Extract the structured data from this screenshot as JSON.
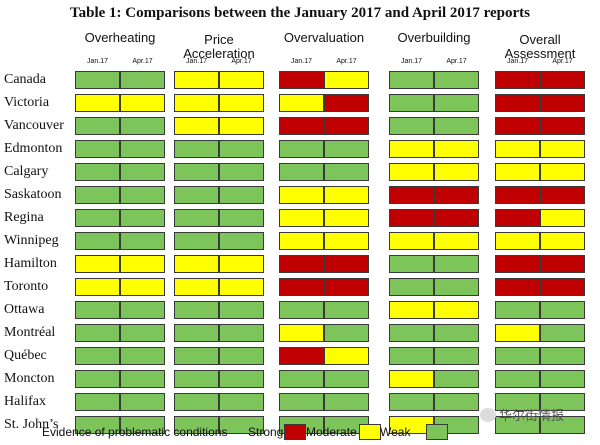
{
  "chart_data": {
    "type": "table",
    "title": "Table 1: Comparisons between the January 2017 and April 2017 reports",
    "categories": [
      {
        "line1": "Overheating",
        "line2": ""
      },
      {
        "line1": "Price",
        "line2": "Acceleration"
      },
      {
        "line1": "Overvaluation",
        "line2": ""
      },
      {
        "line1": "Overbuilding",
        "line2": ""
      },
      {
        "line1": "Overall",
        "line2": "Assessment"
      }
    ],
    "periods": [
      "Jan.17",
      "Apr.17"
    ],
    "cities": [
      "Canada",
      "Victoria",
      "Vancouver",
      "Edmonton",
      "Calgary",
      "Saskatoon",
      "Regina",
      "Winnipeg",
      "Hamilton",
      "Toronto",
      "Ottawa",
      "Montréal",
      "Québec",
      "Moncton",
      "Halifax",
      "St. John’s"
    ],
    "levels": {
      "S": {
        "name": "Strong",
        "color": "#c00000"
      },
      "M": {
        "name": "Moderate",
        "color": "#ffff00"
      },
      "W": {
        "name": "Weak",
        "color": "#7dc45a"
      }
    },
    "values": [
      [
        "WW",
        "MM",
        "SM",
        "WW",
        "SS"
      ],
      [
        "MM",
        "MM",
        "MS",
        "WW",
        "SS"
      ],
      [
        "WW",
        "MM",
        "SS",
        "WW",
        "SS"
      ],
      [
        "WW",
        "WW",
        "WW",
        "MM",
        "MM"
      ],
      [
        "WW",
        "WW",
        "WW",
        "MM",
        "MM"
      ],
      [
        "WW",
        "WW",
        "MM",
        "SS",
        "SS"
      ],
      [
        "WW",
        "WW",
        "MM",
        "SS",
        "SM"
      ],
      [
        "WW",
        "WW",
        "MM",
        "MM",
        "MM"
      ],
      [
        "MM",
        "MM",
        "SS",
        "WW",
        "SS"
      ],
      [
        "MM",
        "MM",
        "SS",
        "WW",
        "SS"
      ],
      [
        "WW",
        "WW",
        "WW",
        "MM",
        "WW"
      ],
      [
        "WW",
        "WW",
        "MW",
        "WW",
        "MW"
      ],
      [
        "WW",
        "WW",
        "SM",
        "WW",
        "WW"
      ],
      [
        "WW",
        "WW",
        "WW",
        "MW",
        "WW"
      ],
      [
        "WW",
        "WW",
        "WW",
        "WW",
        "WW"
      ],
      [
        "WW",
        "WW",
        "WW",
        "MW",
        "WW"
      ]
    ],
    "legend": {
      "caption": "Evidence of problematic conditions",
      "items": [
        "Strong",
        "Moderate",
        "Weak"
      ]
    }
  },
  "watermark": "华尔街情报"
}
